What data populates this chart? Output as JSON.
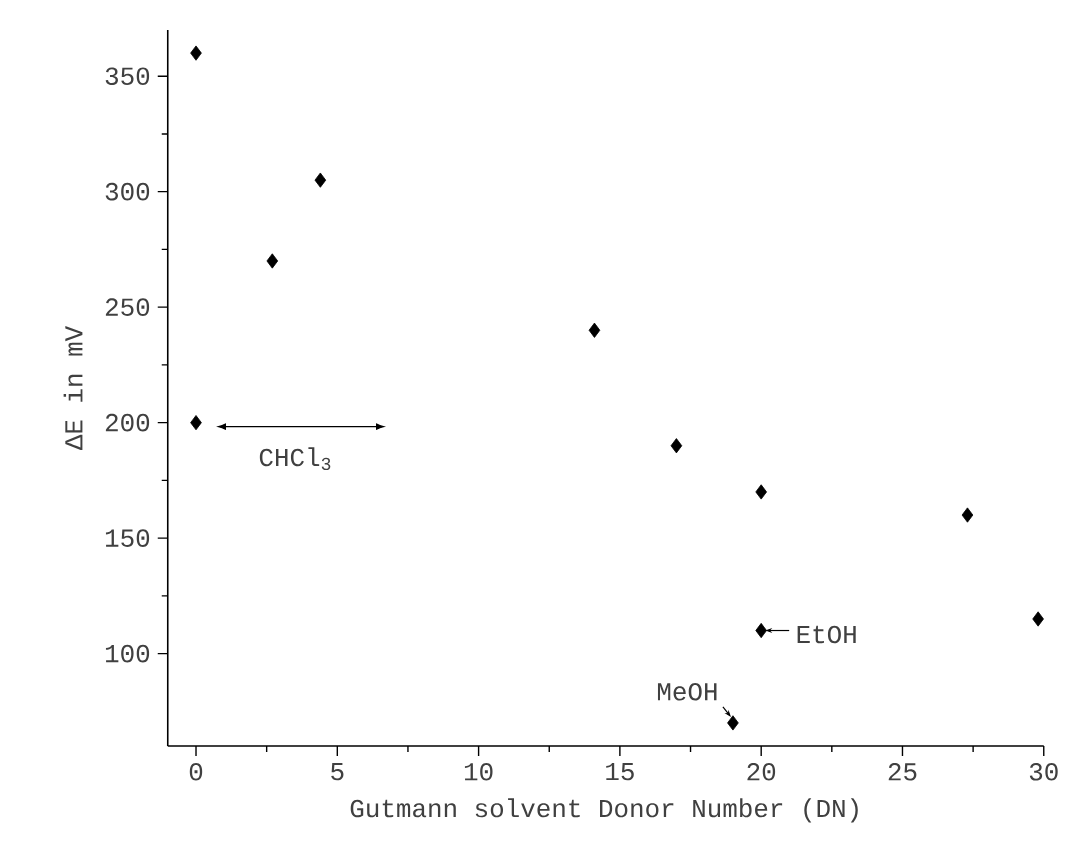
{
  "chart_data": {
    "type": "scatter",
    "xlabel": "Gutmann solvent Donor Number (DN)",
    "ylabel": "ΔE in mV",
    "x": [
      0,
      2.7,
      4.4,
      14.1,
      17,
      20,
      27.3,
      29.8,
      0,
      20,
      19
    ],
    "series": [
      {
        "color": "#000000",
        "values": [
          360,
          270,
          305,
          240,
          190,
          170,
          160,
          115,
          200,
          110,
          70
        ]
      }
    ],
    "marker": "diamond",
    "xlim": [
      -1,
      30
    ],
    "ylim": [
      60,
      370
    ],
    "xticks": [
      0,
      5,
      10,
      15,
      20,
      25,
      30
    ],
    "yticks": [
      100,
      150,
      200,
      250,
      300,
      350
    ],
    "grid": false,
    "annotations": [
      {
        "text": "CHCl$_{3}$",
        "x": 0,
        "y": 200
      },
      {
        "text": "EtOH",
        "x": 20,
        "y": 110
      },
      {
        "text": "MeOH",
        "x": 19,
        "y": 70
      }
    ]
  }
}
